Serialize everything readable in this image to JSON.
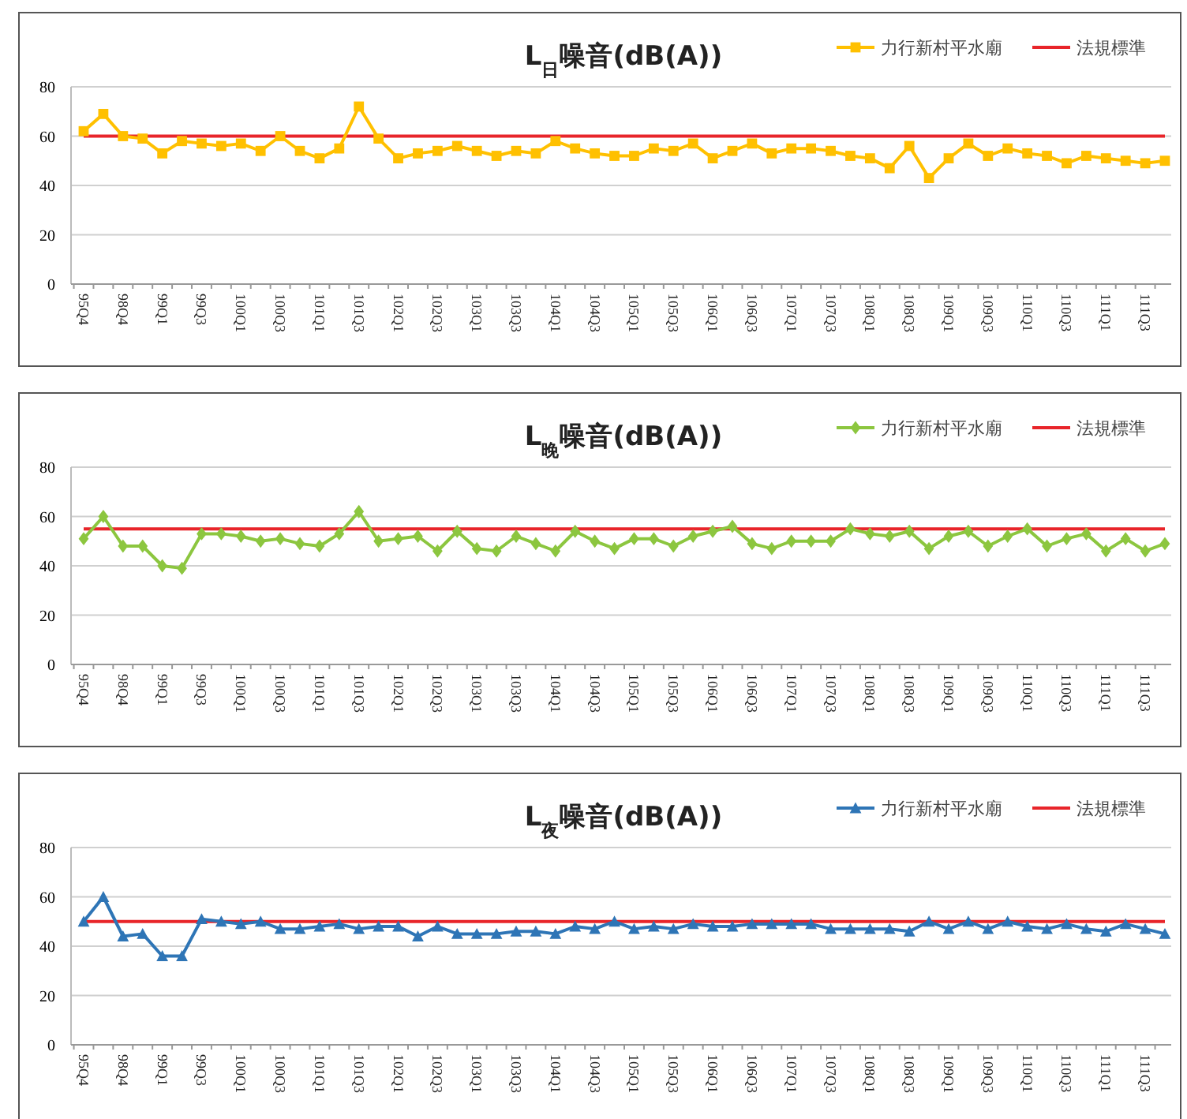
{
  "chart_data": [
    {
      "type": "line",
      "title": "L$_{日}$噪音(dB(A))",
      "categories": [
        "95Q4",
        null,
        "98Q4",
        null,
        "99Q1",
        null,
        "99Q3",
        null,
        "100Q1",
        null,
        "100Q3",
        null,
        "101Q1",
        null,
        "101Q3",
        null,
        "102Q1",
        null,
        "102Q3",
        null,
        "103Q1",
        null,
        "103Q3",
        null,
        "104Q1",
        null,
        "104Q3",
        null,
        "105Q1",
        null,
        "105Q3",
        null,
        "106Q1",
        null,
        "106Q3",
        null,
        "107Q1",
        null,
        "107Q3",
        null,
        "108Q1",
        null,
        "108Q3",
        null,
        "109Q1",
        null,
        "109Q3",
        null,
        "110Q1",
        null,
        "110Q3",
        null,
        "111Q1",
        null,
        "111Q3",
        null
      ],
      "series": [
        {
          "name": "力行新村平水廟",
          "color": "#ffc000",
          "marker": "square",
          "values": [
            62,
            69,
            60,
            59,
            53,
            58,
            57,
            56,
            57,
            54,
            60,
            54,
            51,
            55,
            72,
            59,
            51,
            53,
            54,
            56,
            54,
            52,
            54,
            53,
            58,
            55,
            53,
            52,
            52,
            55,
            54,
            57,
            51,
            54,
            57,
            53,
            55,
            55,
            54,
            52,
            51,
            47,
            56,
            43,
            51,
            57,
            52,
            55,
            53,
            52,
            49,
            52,
            51,
            50,
            49,
            50
          ]
        }
      ],
      "ref_lines": [
        {
          "axis": "y",
          "value": 60,
          "label": "法規標準",
          "color": "#e8252a"
        }
      ],
      "ylim": [
        0,
        80
      ],
      "yticks": [
        0,
        20,
        40,
        60,
        80
      ],
      "grid": "y",
      "legend": "top right"
    },
    {
      "type": "line",
      "title": "L$_{晚}$噪音(dB(A))",
      "categories": [
        "95Q4",
        null,
        "98Q4",
        null,
        "99Q1",
        null,
        "99Q3",
        null,
        "100Q1",
        null,
        "100Q3",
        null,
        "101Q1",
        null,
        "101Q3",
        null,
        "102Q1",
        null,
        "102Q3",
        null,
        "103Q1",
        null,
        "103Q3",
        null,
        "104Q1",
        null,
        "104Q3",
        null,
        "105Q1",
        null,
        "105Q3",
        null,
        "106Q1",
        null,
        "106Q3",
        null,
        "107Q1",
        null,
        "107Q3",
        null,
        "108Q1",
        null,
        "108Q3",
        null,
        "109Q1",
        null,
        "109Q3",
        null,
        "110Q1",
        null,
        "110Q3",
        null,
        "111Q1",
        null,
        "111Q3",
        null
      ],
      "series": [
        {
          "name": "力行新村平水廟",
          "color": "#8cc63f",
          "marker": "diamond",
          "values": [
            51,
            60,
            48,
            48,
            40,
            39,
            53,
            53,
            52,
            50,
            51,
            49,
            48,
            53,
            62,
            50,
            51,
            52,
            46,
            54,
            47,
            46,
            52,
            49,
            46,
            54,
            50,
            47,
            51,
            51,
            48,
            52,
            54,
            56,
            49,
            47,
            50,
            50,
            50,
            55,
            53,
            52,
            54,
            47,
            52,
            54,
            48,
            52,
            55,
            48,
            51,
            53,
            46,
            51,
            46,
            49
          ]
        }
      ],
      "ref_lines": [
        {
          "axis": "y",
          "value": 55,
          "label": "法規標準",
          "color": "#e8252a"
        }
      ],
      "ylim": [
        0,
        80
      ],
      "yticks": [
        0,
        20,
        40,
        60,
        80
      ],
      "grid": "y",
      "legend": "top right"
    },
    {
      "type": "line",
      "title": "L$_{夜}$噪音(dB(A))",
      "categories": [
        "95Q4",
        null,
        "98Q4",
        null,
        "99Q1",
        null,
        "99Q3",
        null,
        "100Q1",
        null,
        "100Q3",
        null,
        "101Q1",
        null,
        "101Q3",
        null,
        "102Q1",
        null,
        "102Q3",
        null,
        "103Q1",
        null,
        "103Q3",
        null,
        "104Q1",
        null,
        "104Q3",
        null,
        "105Q1",
        null,
        "105Q3",
        null,
        "106Q1",
        null,
        "106Q3",
        null,
        "107Q1",
        null,
        "107Q3",
        null,
        "108Q1",
        null,
        "108Q3",
        null,
        "109Q1",
        null,
        "109Q3",
        null,
        "110Q1",
        null,
        "110Q3",
        null,
        "111Q1",
        null,
        "111Q3",
        null
      ],
      "series": [
        {
          "name": "力行新村平水廟",
          "color": "#2e75b6",
          "marker": "triangle",
          "values": [
            50,
            60,
            44,
            45,
            36,
            36,
            51,
            50,
            49,
            50,
            47,
            47,
            48,
            49,
            47,
            48,
            48,
            44,
            48,
            45,
            45,
            45,
            46,
            46,
            45,
            48,
            47,
            50,
            47,
            48,
            47,
            49,
            48,
            48,
            49,
            49,
            49,
            49,
            47,
            47,
            47,
            47,
            46,
            50,
            47,
            50,
            47,
            50,
            48,
            47,
            49,
            47,
            46,
            49,
            47,
            45
          ]
        }
      ],
      "ref_lines": [
        {
          "axis": "y",
          "value": 50,
          "label": "法規標準",
          "color": "#e8252a"
        }
      ],
      "ylim": [
        0,
        80
      ],
      "yticks": [
        0,
        20,
        40,
        60,
        80
      ],
      "grid": "y",
      "legend": "top right"
    }
  ]
}
